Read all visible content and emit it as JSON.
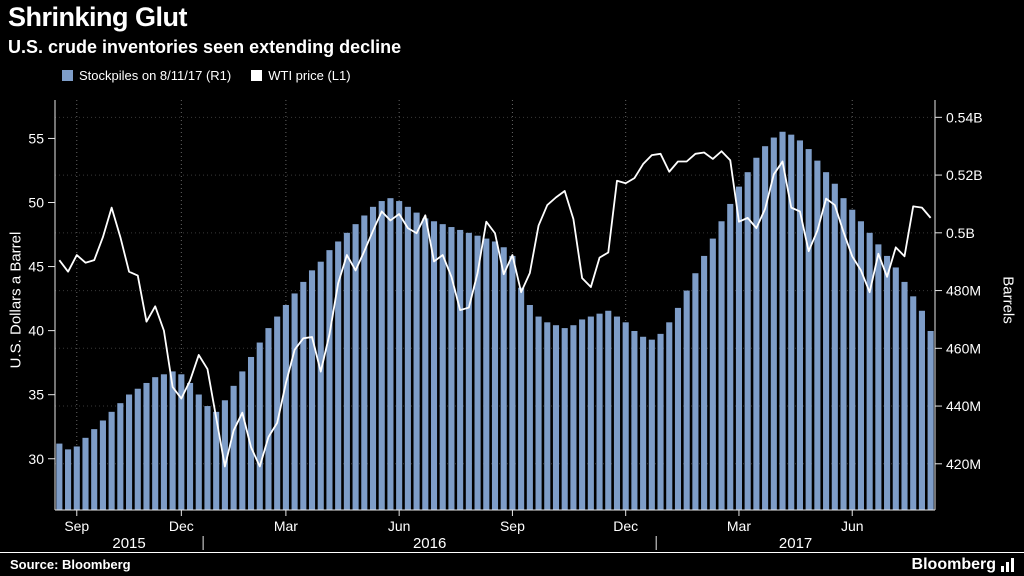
{
  "title": "Shrinking Glut",
  "subtitle": "U.S. crude inventories seen extending decline",
  "legend": {
    "items": [
      {
        "label": "Stockpiles on 8/11/17 (R1)",
        "color": "#7e9dc8"
      },
      {
        "label": "WTI price (L1)",
        "color": "#ffffff"
      }
    ]
  },
  "source": "Source:  Bloomberg",
  "brand": "Bloomberg",
  "colors": {
    "background": "#000000",
    "bar": "#7e9dc8",
    "line": "#ffffff",
    "axis": "#e8e8e8",
    "text": "#ffffff"
  },
  "chart_data": {
    "type": "combo",
    "x_unit": "weeks, Sep 2015 - Aug 2017",
    "left_axis": {
      "title": "U.S. Dollars a Barrel",
      "range": [
        26,
        58
      ],
      "ticks": [
        30,
        35,
        40,
        45,
        50,
        55
      ]
    },
    "right_axis": {
      "title": "Barrels",
      "range": [
        404,
        546
      ],
      "ticks": [
        {
          "v": 420,
          "label": "420M"
        },
        {
          "v": 440,
          "label": "440M"
        },
        {
          "v": 460,
          "label": "460M"
        },
        {
          "v": 480,
          "label": "480M"
        },
        {
          "v": 500,
          "label": "0.5B"
        },
        {
          "v": 520,
          "label": "0.52B"
        },
        {
          "v": 540,
          "label": "0.54B"
        }
      ]
    },
    "x_axis": {
      "ticks": [
        {
          "i": 2,
          "label": "Sep"
        },
        {
          "i": 14,
          "label": "Dec"
        },
        {
          "i": 26,
          "label": "Mar"
        },
        {
          "i": 39,
          "label": "Jun"
        },
        {
          "i": 52,
          "label": "Sep"
        },
        {
          "i": 65,
          "label": "Dec"
        },
        {
          "i": 78,
          "label": "Mar"
        },
        {
          "i": 91,
          "label": "Jun"
        }
      ],
      "year_dividers": [
        17,
        69
      ],
      "years": [
        {
          "label": "2015",
          "center_index": 8.5
        },
        {
          "label": "2016",
          "center_index": 43
        },
        {
          "label": "2017",
          "center_index": 85
        }
      ]
    },
    "series": [
      {
        "name": "Stockpiles on 8/11/17 (R1)",
        "type": "bar",
        "axis": "right",
        "unit": "million barrels",
        "color": "#7e9dc8",
        "values": [
          427,
          425,
          426,
          429,
          432,
          435,
          438,
          441,
          444,
          446,
          448,
          450,
          451,
          452,
          451,
          448,
          444,
          440,
          438,
          442,
          447,
          452,
          457,
          462,
          467,
          471,
          475,
          479,
          483,
          487,
          490,
          494,
          497,
          500,
          503,
          506,
          509,
          511,
          512,
          511,
          509,
          507,
          505,
          504,
          503,
          502,
          501,
          500,
          499,
          498,
          497,
          495,
          492,
          481,
          475,
          471,
          469,
          468,
          467,
          468,
          470,
          471,
          472,
          473,
          471,
          469,
          466,
          464,
          463,
          465,
          469,
          474,
          480,
          486,
          492,
          498,
          504,
          510,
          516,
          521,
          526,
          530,
          533,
          535,
          534,
          532,
          529,
          525,
          521,
          517,
          512,
          508,
          504,
          500,
          496,
          492,
          488,
          483,
          478,
          473,
          466
        ]
      },
      {
        "name": "WTI price (L1)",
        "type": "line",
        "axis": "left",
        "unit": "USD per barrel",
        "color": "#ffffff",
        "values": [
          45.5,
          44.6,
          45.9,
          45.3,
          45.5,
          47.3,
          49.6,
          47.3,
          44.6,
          44.3,
          40.7,
          41.9,
          40.0,
          35.6,
          34.7,
          36.1,
          38.1,
          37.0,
          33.2,
          29.4,
          32.2,
          33.6,
          30.9,
          29.4,
          31.7,
          32.8,
          35.9,
          38.5,
          39.4,
          39.5,
          36.8,
          39.7,
          43.7,
          45.9,
          44.7,
          46.2,
          47.8,
          49.3,
          48.6,
          49.1,
          48.0,
          47.6,
          49.0,
          45.4,
          45.9,
          44.2,
          41.6,
          41.8,
          44.5,
          48.5,
          47.6,
          44.4,
          45.9,
          43.0,
          44.5,
          48.2,
          49.8,
          50.4,
          50.9,
          48.7,
          44.1,
          43.4,
          45.7,
          46.1,
          51.7,
          51.5,
          51.9,
          53.0,
          53.7,
          53.8,
          52.4,
          53.2,
          53.2,
          53.8,
          53.9,
          53.4,
          54.0,
          53.3,
          48.5,
          48.8,
          48.0,
          49.5,
          52.2,
          53.2,
          49.6,
          49.3,
          46.2,
          47.8,
          50.3,
          49.8,
          47.7,
          45.8,
          44.7,
          43.0,
          46.0,
          44.2,
          46.5,
          45.8,
          49.7,
          49.6,
          48.8
        ]
      }
    ]
  }
}
